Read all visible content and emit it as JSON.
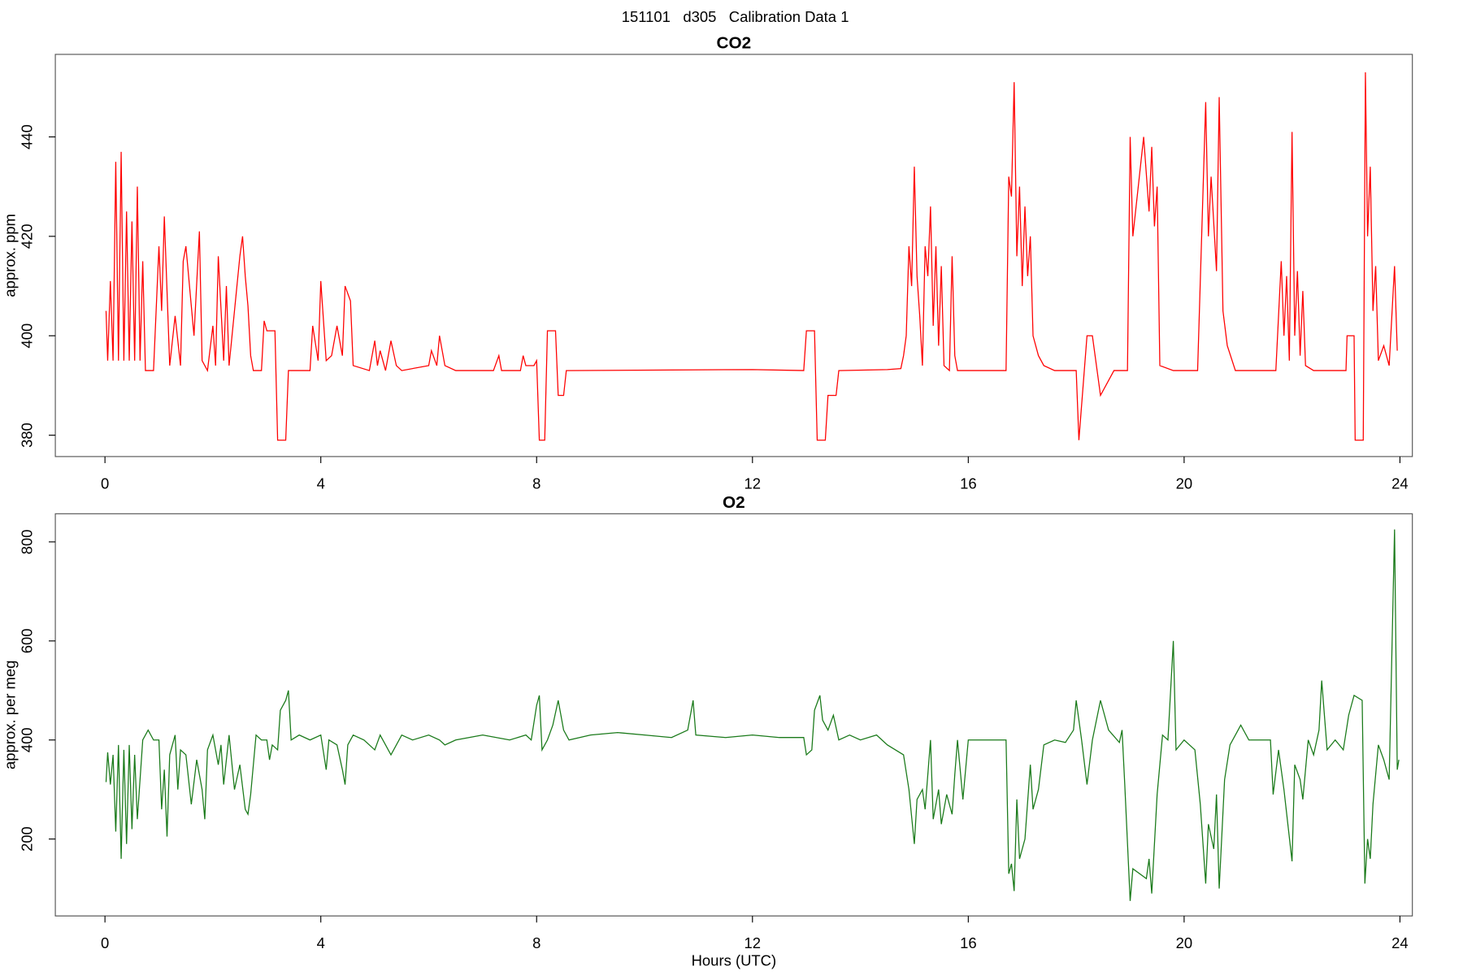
{
  "title": "151101   d305   Calibration Data 1",
  "chart_data": [
    {
      "type": "line",
      "title": "CO2",
      "ylabel": "approx. ppm",
      "xlim": [
        -0.92,
        24.23
      ],
      "xticks": [
        0,
        4,
        8,
        12,
        16,
        20,
        24
      ],
      "ylim": [
        375.7,
        456.6
      ],
      "yticks": [
        380,
        400,
        420,
        440
      ],
      "x": [
        0.02,
        0.05,
        0.1,
        0.15,
        0.2,
        0.25,
        0.3,
        0.35,
        0.4,
        0.45,
        0.5,
        0.55,
        0.6,
        0.65,
        0.7,
        0.75,
        0.9,
        1.0,
        1.05,
        1.1,
        1.2,
        1.3,
        1.4,
        1.45,
        1.5,
        1.6,
        1.65,
        1.75,
        1.8,
        1.9,
        2.0,
        2.05,
        2.1,
        2.2,
        2.25,
        2.3,
        2.4,
        2.5,
        2.55,
        2.6,
        2.65,
        2.7,
        2.75,
        2.9,
        2.95,
        3.0,
        3.15,
        3.2,
        3.35,
        3.4,
        3.8,
        3.85,
        3.95,
        4.0,
        4.1,
        4.2,
        4.3,
        4.4,
        4.45,
        4.55,
        4.6,
        4.9,
        5.0,
        5.05,
        5.1,
        5.2,
        5.3,
        5.4,
        5.5,
        6.0,
        6.05,
        6.15,
        6.2,
        6.3,
        6.5,
        7.2,
        7.3,
        7.35,
        7.7,
        7.75,
        7.8,
        7.95,
        8.0,
        8.05,
        8.15,
        8.2,
        8.35,
        8.4,
        8.5,
        8.55,
        12.0,
        12.95,
        13.0,
        13.15,
        13.2,
        13.35,
        13.4,
        13.55,
        13.6,
        14.5,
        14.75,
        14.8,
        14.85,
        14.9,
        14.95,
        15.0,
        15.05,
        15.1,
        15.15,
        15.2,
        15.25,
        15.3,
        15.35,
        15.4,
        15.45,
        15.5,
        15.55,
        15.65,
        15.7,
        15.75,
        15.8,
        16.7,
        16.75,
        16.8,
        16.85,
        16.9,
        16.95,
        17.0,
        17.05,
        17.1,
        17.15,
        17.2,
        17.3,
        17.4,
        17.6,
        18.0,
        18.05,
        18.15,
        18.2,
        18.3,
        18.45,
        18.7,
        18.95,
        19.0,
        19.05,
        19.25,
        19.35,
        19.4,
        19.45,
        19.5,
        19.55,
        19.8,
        20.25,
        20.4,
        20.45,
        20.5,
        20.6,
        20.65,
        20.72,
        20.8,
        20.95,
        21.7,
        21.8,
        21.85,
        21.9,
        21.95,
        22.0,
        22.05,
        22.1,
        22.15,
        22.2,
        22.25,
        22.4,
        23.0,
        23.02,
        23.15,
        23.17,
        23.32,
        23.36,
        23.4,
        23.45,
        23.5,
        23.55,
        23.6,
        23.7,
        23.8,
        23.9,
        23.95
      ],
      "series": [
        {
          "color": "#ff0000",
          "values": [
            405,
            395,
            411,
            395,
            435,
            395,
            437,
            395,
            425,
            395,
            423,
            395,
            430,
            395,
            415,
            393,
            393,
            418,
            405,
            424,
            394,
            404,
            394,
            415,
            418,
            406,
            400,
            421,
            395,
            393,
            402,
            394,
            416,
            395,
            410,
            394,
            405,
            416,
            420,
            412,
            406,
            396,
            393,
            393,
            403,
            401,
            401,
            379,
            379,
            393,
            393,
            402,
            395,
            411,
            395,
            396,
            402,
            396,
            410,
            407,
            394,
            393,
            399,
            394,
            397,
            393,
            399,
            394,
            393,
            394,
            397,
            394,
            400,
            394,
            393,
            393,
            396,
            393,
            393,
            396,
            394,
            394,
            395,
            379,
            379,
            401,
            401,
            388,
            388,
            393,
            393.2,
            393,
            401,
            401,
            379,
            379,
            388,
            388,
            393,
            393.2,
            393.4,
            396,
            400,
            418,
            410,
            434,
            412,
            404,
            394,
            418,
            412,
            426,
            402,
            418,
            398,
            414,
            394,
            393,
            416,
            396,
            393,
            393,
            432,
            428,
            451,
            416,
            430,
            410,
            426,
            412,
            420,
            400,
            396,
            394,
            393,
            393,
            379,
            393,
            400,
            400,
            388,
            393,
            393,
            440,
            420,
            440,
            425,
            438,
            422,
            430,
            394,
            393,
            393,
            447,
            420,
            432,
            413,
            448,
            405,
            398,
            393,
            393,
            415,
            400,
            412,
            395,
            441,
            400,
            413,
            396,
            409,
            394,
            393,
            393,
            400,
            400,
            379,
            379,
            453,
            420,
            434,
            405,
            414,
            395,
            398,
            394,
            414,
            397
          ]
        }
      ]
    },
    {
      "type": "line",
      "title": "O2",
      "ylabel": "approx. per meg",
      "xlabel": "Hours (UTC)",
      "xlim": [
        -0.92,
        24.23
      ],
      "xticks": [
        0,
        4,
        8,
        12,
        16,
        20,
        24
      ],
      "ylim": [
        44.7,
        856.8
      ],
      "yticks": [
        200,
        400,
        600,
        800
      ],
      "x": [
        0.02,
        0.05,
        0.1,
        0.15,
        0.2,
        0.25,
        0.3,
        0.35,
        0.4,
        0.45,
        0.5,
        0.55,
        0.6,
        0.7,
        0.8,
        0.9,
        1.0,
        1.05,
        1.1,
        1.15,
        1.2,
        1.3,
        1.35,
        1.4,
        1.5,
        1.6,
        1.7,
        1.8,
        1.85,
        1.9,
        2.0,
        2.1,
        2.15,
        2.2,
        2.3,
        2.4,
        2.5,
        2.6,
        2.65,
        2.7,
        2.8,
        2.9,
        3.0,
        3.05,
        3.1,
        3.2,
        3.25,
        3.35,
        3.4,
        3.45,
        3.6,
        3.8,
        4.0,
        4.1,
        4.15,
        4.3,
        4.4,
        4.45,
        4.5,
        4.6,
        4.8,
        5.0,
        5.1,
        5.2,
        5.3,
        5.5,
        5.7,
        6.0,
        6.2,
        6.3,
        6.5,
        7.0,
        7.5,
        7.8,
        7.9,
        8.0,
        8.05,
        8.1,
        8.2,
        8.3,
        8.4,
        8.5,
        8.6,
        9.0,
        9.5,
        10.0,
        10.5,
        10.8,
        10.9,
        10.95,
        11.5,
        12.0,
        12.5,
        12.95,
        13.0,
        13.1,
        13.15,
        13.25,
        13.3,
        13.4,
        13.5,
        13.6,
        13.8,
        14.0,
        14.3,
        14.5,
        14.8,
        14.9,
        15.0,
        15.05,
        15.15,
        15.2,
        15.3,
        15.35,
        15.45,
        15.5,
        15.6,
        15.7,
        15.75,
        15.8,
        15.9,
        16.0,
        16.2,
        16.5,
        16.7,
        16.75,
        16.8,
        16.85,
        16.9,
        16.95,
        17.05,
        17.15,
        17.2,
        17.3,
        17.4,
        17.6,
        17.8,
        17.95,
        18.0,
        18.1,
        18.2,
        18.3,
        18.45,
        18.6,
        18.8,
        18.85,
        18.9,
        19.0,
        19.05,
        19.3,
        19.35,
        19.4,
        19.5,
        19.6,
        19.7,
        19.8,
        19.85,
        20.0,
        20.2,
        20.3,
        20.4,
        20.45,
        20.55,
        20.6,
        20.65,
        20.75,
        20.85,
        20.95,
        21.05,
        21.2,
        21.6,
        21.65,
        21.75,
        21.85,
        22.0,
        22.05,
        22.15,
        22.2,
        22.3,
        22.4,
        22.5,
        22.55,
        22.65,
        22.8,
        22.95,
        23.05,
        23.15,
        23.3,
        23.35,
        23.4,
        23.45,
        23.5,
        23.6,
        23.7,
        23.75,
        23.8,
        23.9,
        23.95,
        23.98
      ],
      "series": [
        {
          "color": "#1a7a1a",
          "values": [
            315,
            375,
            310,
            370,
            215,
            390,
            160,
            380,
            190,
            390,
            220,
            370,
            240,
            400,
            420,
            400,
            400,
            260,
            340,
            205,
            370,
            410,
            300,
            380,
            370,
            270,
            360,
            300,
            240,
            380,
            410,
            350,
            390,
            310,
            410,
            300,
            350,
            260,
            250,
            290,
            410,
            400,
            400,
            360,
            390,
            380,
            460,
            480,
            500,
            400,
            410,
            400,
            410,
            340,
            400,
            390,
            340,
            310,
            390,
            410,
            400,
            380,
            410,
            390,
            370,
            410,
            400,
            410,
            400,
            390,
            400,
            410,
            400,
            410,
            400,
            470,
            490,
            380,
            400,
            430,
            480,
            420,
            400,
            410,
            415,
            410,
            405,
            420,
            480,
            410,
            405,
            410,
            405,
            405,
            370,
            380,
            460,
            490,
            440,
            420,
            450,
            400,
            410,
            400,
            410,
            390,
            370,
            300,
            190,
            280,
            300,
            260,
            400,
            240,
            300,
            230,
            290,
            250,
            330,
            400,
            280,
            400,
            400,
            400,
            400,
            130,
            150,
            95,
            280,
            160,
            200,
            350,
            260,
            300,
            390,
            400,
            395,
            420,
            480,
            400,
            310,
            400,
            480,
            420,
            395,
            420,
            310,
            75,
            140,
            120,
            160,
            90,
            290,
            410,
            400,
            600,
            380,
            400,
            380,
            270,
            110,
            230,
            180,
            290,
            100,
            320,
            390,
            410,
            430,
            400,
            400,
            290,
            380,
            300,
            155,
            350,
            320,
            280,
            400,
            370,
            420,
            520,
            380,
            400,
            380,
            450,
            490,
            480,
            110,
            200,
            160,
            270,
            390,
            360,
            340,
            320,
            825,
            340,
            360
          ]
        }
      ]
    }
  ]
}
